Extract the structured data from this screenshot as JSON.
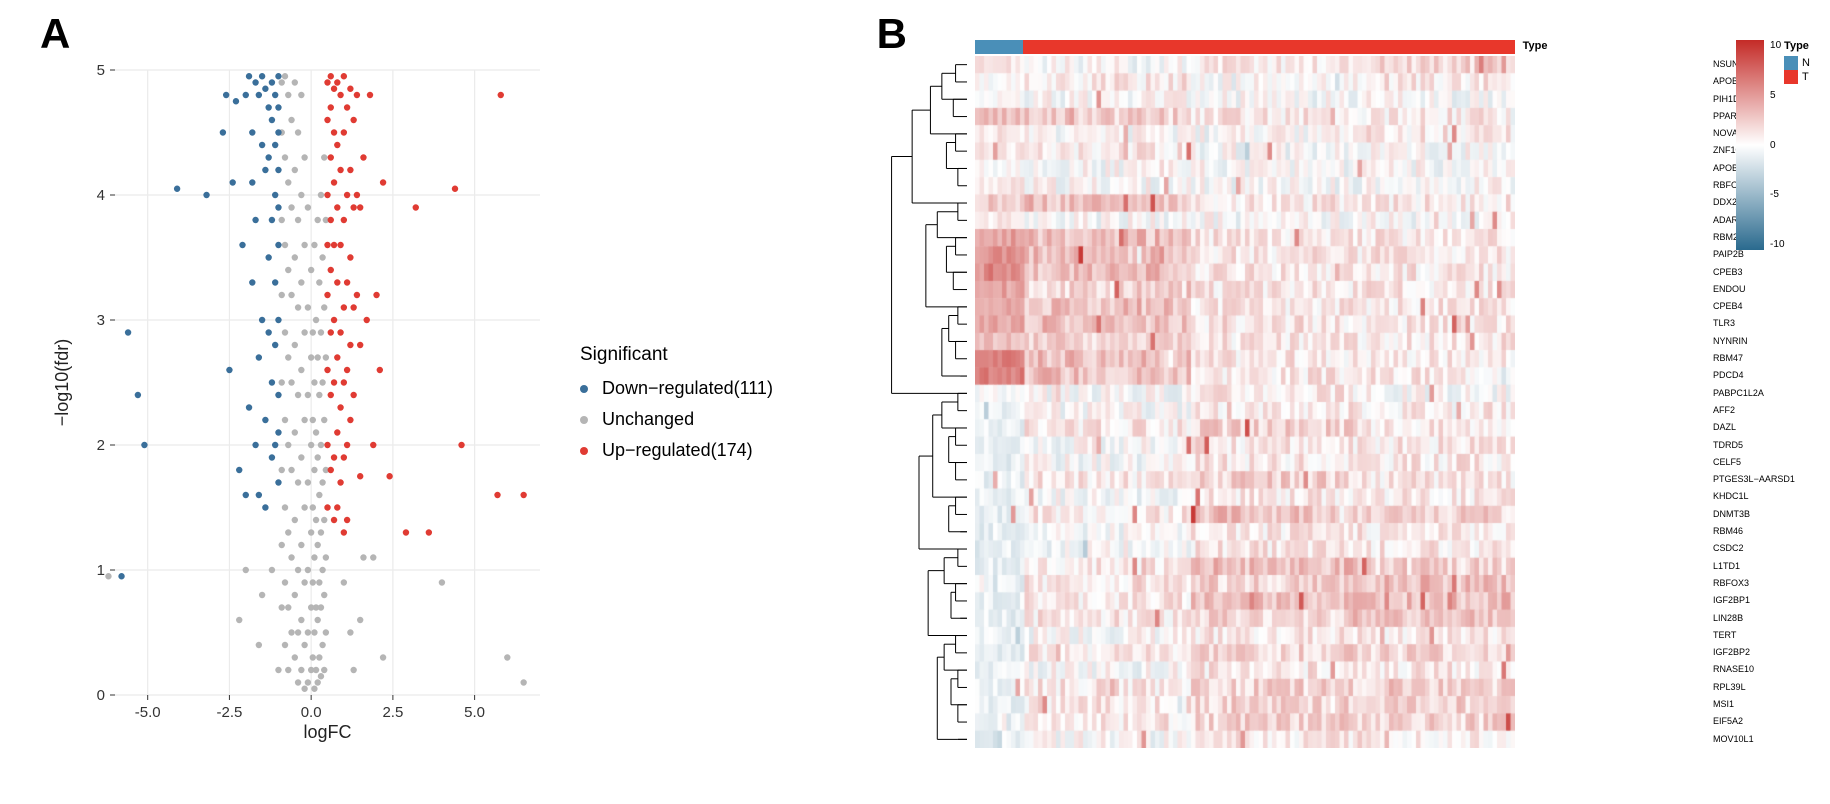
{
  "panelA": {
    "label": "A",
    "type": "scatter",
    "xlabel": "logFC",
    "ylabel": "−log10(fdr)",
    "xlim": [
      -6,
      7
    ],
    "ylim": [
      0,
      5
    ],
    "xticks": [
      -5.0,
      -2.5,
      0.0,
      2.5,
      5.0
    ],
    "yticks": [
      0,
      1,
      2,
      3,
      4,
      5
    ],
    "background_color": "#ffffff",
    "grid_color": "#ebebeb",
    "panel_border": "none",
    "point_radius": 3.2,
    "legend_title": "Significant",
    "categories": {
      "down": {
        "label": "Down−regulated(111)",
        "color": "#3a6f9a"
      },
      "unchanged": {
        "label": "Unchanged",
        "color": "#b5b5b5"
      },
      "up": {
        "label": "Up−regulated(174)",
        "color": "#e03b33"
      }
    },
    "points_down": [
      [
        -5.8,
        0.95
      ],
      [
        -5.6,
        2.9
      ],
      [
        -5.3,
        2.4
      ],
      [
        -5.1,
        2.0
      ],
      [
        -4.1,
        4.05
      ],
      [
        -3.2,
        4.0
      ],
      [
        -2.7,
        4.5
      ],
      [
        -2.6,
        4.8
      ],
      [
        -2.5,
        2.6
      ],
      [
        -2.4,
        4.1
      ],
      [
        -2.3,
        4.75
      ],
      [
        -2.2,
        1.8
      ],
      [
        -2.1,
        3.6
      ],
      [
        -2.0,
        4.8
      ],
      [
        -2.0,
        1.6
      ],
      [
        -1.9,
        4.95
      ],
      [
        -1.9,
        2.3
      ],
      [
        -1.8,
        4.5
      ],
      [
        -1.8,
        3.3
      ],
      [
        -1.8,
        4.1
      ],
      [
        -1.7,
        4.9
      ],
      [
        -1.7,
        2.0
      ],
      [
        -1.7,
        3.8
      ],
      [
        -1.6,
        4.8
      ],
      [
        -1.6,
        2.7
      ],
      [
        -1.6,
        1.6
      ],
      [
        -1.5,
        4.95
      ],
      [
        -1.5,
        4.4
      ],
      [
        -1.5,
        3.0
      ],
      [
        -1.4,
        4.85
      ],
      [
        -1.4,
        4.2
      ],
      [
        -1.4,
        2.2
      ],
      [
        -1.4,
        1.5
      ],
      [
        -1.3,
        4.7
      ],
      [
        -1.3,
        3.5
      ],
      [
        -1.3,
        2.9
      ],
      [
        -1.3,
        4.3
      ],
      [
        -1.2,
        4.9
      ],
      [
        -1.2,
        3.8
      ],
      [
        -1.2,
        2.5
      ],
      [
        -1.2,
        4.6
      ],
      [
        -1.2,
        1.9
      ],
      [
        -1.1,
        4.8
      ],
      [
        -1.1,
        4.0
      ],
      [
        -1.1,
        3.3
      ],
      [
        -1.1,
        2.0
      ],
      [
        -1.1,
        4.4
      ],
      [
        -1.1,
        2.8
      ],
      [
        -1.0,
        4.95
      ],
      [
        -1.0,
        4.7
      ],
      [
        -1.0,
        3.6
      ],
      [
        -1.0,
        3.0
      ],
      [
        -1.0,
        4.2
      ],
      [
        -1.0,
        1.7
      ],
      [
        -1.0,
        2.4
      ],
      [
        -1.0,
        3.9
      ],
      [
        -1.0,
        4.5
      ],
      [
        -1.0,
        2.1
      ]
    ],
    "points_up": [
      [
        0.5,
        4.9
      ],
      [
        0.5,
        4.6
      ],
      [
        0.5,
        4.0
      ],
      [
        0.5,
        3.6
      ],
      [
        0.5,
        3.2
      ],
      [
        0.5,
        2.6
      ],
      [
        0.5,
        2.0
      ],
      [
        0.5,
        1.5
      ],
      [
        0.6,
        4.95
      ],
      [
        0.6,
        4.7
      ],
      [
        0.6,
        4.3
      ],
      [
        0.6,
        3.8
      ],
      [
        0.6,
        3.4
      ],
      [
        0.6,
        2.9
      ],
      [
        0.6,
        2.4
      ],
      [
        0.6,
        1.8
      ],
      [
        0.7,
        4.85
      ],
      [
        0.7,
        4.5
      ],
      [
        0.7,
        4.1
      ],
      [
        0.7,
        3.6
      ],
      [
        0.7,
        3.0
      ],
      [
        0.7,
        2.5
      ],
      [
        0.7,
        1.9
      ],
      [
        0.7,
        1.4
      ],
      [
        0.8,
        4.9
      ],
      [
        0.8,
        4.4
      ],
      [
        0.8,
        3.9
      ],
      [
        0.8,
        3.3
      ],
      [
        0.8,
        2.7
      ],
      [
        0.8,
        2.1
      ],
      [
        0.8,
        1.5
      ],
      [
        0.9,
        4.8
      ],
      [
        0.9,
        4.2
      ],
      [
        0.9,
        3.6
      ],
      [
        0.9,
        2.9
      ],
      [
        0.9,
        2.3
      ],
      [
        0.9,
        1.7
      ],
      [
        1.0,
        4.95
      ],
      [
        1.0,
        4.5
      ],
      [
        1.0,
        3.8
      ],
      [
        1.0,
        3.1
      ],
      [
        1.0,
        2.5
      ],
      [
        1.0,
        1.9
      ],
      [
        1.0,
        1.3
      ],
      [
        1.1,
        4.7
      ],
      [
        1.1,
        4.0
      ],
      [
        1.1,
        3.3
      ],
      [
        1.1,
        2.6
      ],
      [
        1.1,
        2.0
      ],
      [
        1.1,
        1.4
      ],
      [
        1.2,
        4.85
      ],
      [
        1.2,
        4.2
      ],
      [
        1.2,
        3.5
      ],
      [
        1.2,
        2.8
      ],
      [
        1.2,
        2.2
      ],
      [
        1.3,
        4.6
      ],
      [
        1.3,
        3.9
      ],
      [
        1.3,
        3.1
      ],
      [
        1.3,
        2.4
      ],
      [
        1.4,
        4.8
      ],
      [
        1.4,
        4.0
      ],
      [
        1.4,
        3.2
      ],
      [
        1.5,
        3.9
      ],
      [
        1.5,
        2.8
      ],
      [
        1.5,
        1.75
      ],
      [
        1.6,
        4.3
      ],
      [
        1.7,
        3.0
      ],
      [
        1.8,
        4.8
      ],
      [
        1.9,
        2.0
      ],
      [
        2.0,
        3.2
      ],
      [
        2.1,
        2.6
      ],
      [
        2.2,
        4.1
      ],
      [
        2.4,
        1.75
      ],
      [
        2.9,
        1.3
      ],
      [
        3.2,
        3.9
      ],
      [
        3.6,
        1.3
      ],
      [
        4.4,
        4.05
      ],
      [
        4.6,
        2.0
      ],
      [
        5.7,
        1.6
      ],
      [
        5.8,
        4.8
      ],
      [
        6.5,
        1.6
      ]
    ],
    "points_unchanged": [
      [
        -6.2,
        0.95
      ],
      [
        -0.9,
        4.9
      ],
      [
        -0.9,
        4.5
      ],
      [
        -0.9,
        3.8
      ],
      [
        -0.9,
        3.2
      ],
      [
        -0.9,
        2.5
      ],
      [
        -0.9,
        1.8
      ],
      [
        -0.9,
        1.2
      ],
      [
        -0.9,
        0.7
      ],
      [
        -0.8,
        4.95
      ],
      [
        -0.8,
        4.3
      ],
      [
        -0.8,
        3.6
      ],
      [
        -0.8,
        2.9
      ],
      [
        -0.8,
        2.2
      ],
      [
        -0.8,
        1.5
      ],
      [
        -0.8,
        0.9
      ],
      [
        -0.8,
        0.4
      ],
      [
        -0.7,
        4.8
      ],
      [
        -0.7,
        4.1
      ],
      [
        -0.7,
        3.4
      ],
      [
        -0.7,
        2.7
      ],
      [
        -0.7,
        2.0
      ],
      [
        -0.7,
        1.3
      ],
      [
        -0.7,
        0.7
      ],
      [
        -0.7,
        0.2
      ],
      [
        -0.6,
        4.6
      ],
      [
        -0.6,
        3.9
      ],
      [
        -0.6,
        3.2
      ],
      [
        -0.6,
        2.5
      ],
      [
        -0.6,
        1.8
      ],
      [
        -0.6,
        1.1
      ],
      [
        -0.6,
        0.5
      ],
      [
        -0.5,
        4.9
      ],
      [
        -0.5,
        4.2
      ],
      [
        -0.5,
        3.5
      ],
      [
        -0.5,
        2.8
      ],
      [
        -0.5,
        2.1
      ],
      [
        -0.5,
        1.4
      ],
      [
        -0.5,
        0.8
      ],
      [
        -0.5,
        0.3
      ],
      [
        -0.4,
        4.5
      ],
      [
        -0.4,
        3.8
      ],
      [
        -0.4,
        3.1
      ],
      [
        -0.4,
        2.4
      ],
      [
        -0.4,
        1.7
      ],
      [
        -0.4,
        1.0
      ],
      [
        -0.4,
        0.5
      ],
      [
        -0.4,
        0.1
      ],
      [
        -0.3,
        4.8
      ],
      [
        -0.3,
        4.0
      ],
      [
        -0.3,
        3.3
      ],
      [
        -0.3,
        2.6
      ],
      [
        -0.3,
        1.9
      ],
      [
        -0.3,
        1.2
      ],
      [
        -0.3,
        0.6
      ],
      [
        -0.3,
        0.2
      ],
      [
        -0.2,
        4.3
      ],
      [
        -0.2,
        3.6
      ],
      [
        -0.2,
        2.9
      ],
      [
        -0.2,
        2.2
      ],
      [
        -0.2,
        1.5
      ],
      [
        -0.2,
        0.9
      ],
      [
        -0.2,
        0.4
      ],
      [
        -0.2,
        0.05
      ],
      [
        -0.1,
        3.9
      ],
      [
        -0.1,
        3.1
      ],
      [
        -0.1,
        2.4
      ],
      [
        -0.1,
        1.7
      ],
      [
        -0.1,
        1.0
      ],
      [
        -0.1,
        0.5
      ],
      [
        -0.1,
        0.1
      ],
      [
        0.0,
        3.4
      ],
      [
        0.0,
        2.7
      ],
      [
        0.0,
        2.0
      ],
      [
        0.0,
        1.3
      ],
      [
        0.0,
        0.7
      ],
      [
        0.0,
        0.2
      ],
      [
        0.05,
        2.9
      ],
      [
        0.05,
        2.2
      ],
      [
        0.05,
        1.5
      ],
      [
        0.05,
        0.9
      ],
      [
        0.05,
        0.3
      ],
      [
        0.1,
        3.6
      ],
      [
        0.1,
        2.5
      ],
      [
        0.1,
        1.8
      ],
      [
        0.1,
        1.1
      ],
      [
        0.1,
        0.5
      ],
      [
        0.1,
        0.05
      ],
      [
        0.15,
        3.0
      ],
      [
        0.15,
        2.1
      ],
      [
        0.15,
        1.4
      ],
      [
        0.15,
        0.7
      ],
      [
        0.15,
        0.2
      ],
      [
        0.2,
        3.8
      ],
      [
        0.2,
        2.7
      ],
      [
        0.2,
        1.9
      ],
      [
        0.2,
        1.2
      ],
      [
        0.2,
        0.6
      ],
      [
        0.2,
        0.1
      ],
      [
        0.25,
        3.3
      ],
      [
        0.25,
        2.4
      ],
      [
        0.25,
        1.6
      ],
      [
        0.25,
        0.9
      ],
      [
        0.25,
        0.3
      ],
      [
        0.3,
        4.0
      ],
      [
        0.3,
        2.9
      ],
      [
        0.3,
        2.0
      ],
      [
        0.3,
        1.3
      ],
      [
        0.3,
        0.7
      ],
      [
        0.3,
        0.15
      ],
      [
        0.35,
        3.5
      ],
      [
        0.35,
        2.5
      ],
      [
        0.35,
        1.7
      ],
      [
        0.35,
        1.0
      ],
      [
        0.35,
        0.4
      ],
      [
        0.4,
        4.3
      ],
      [
        0.4,
        3.1
      ],
      [
        0.4,
        2.2
      ],
      [
        0.4,
        1.4
      ],
      [
        0.4,
        0.8
      ],
      [
        0.4,
        0.2
      ],
      [
        0.45,
        3.8
      ],
      [
        0.45,
        2.7
      ],
      [
        0.45,
        1.8
      ],
      [
        0.45,
        1.1
      ],
      [
        0.45,
        0.5
      ],
      [
        1.6,
        1.1
      ],
      [
        1.0,
        0.9
      ],
      [
        1.2,
        0.5
      ],
      [
        1.3,
        0.2
      ],
      [
        1.5,
        0.6
      ],
      [
        1.9,
        1.1
      ],
      [
        2.2,
        0.3
      ],
      [
        4.0,
        0.9
      ],
      [
        6.0,
        0.3
      ],
      [
        6.5,
        0.1
      ],
      [
        -1.2,
        1.0
      ],
      [
        -1.5,
        0.8
      ],
      [
        -2.0,
        1.0
      ],
      [
        -2.2,
        0.6
      ],
      [
        -1.6,
        0.4
      ],
      [
        -1.0,
        0.2
      ]
    ]
  },
  "panelB": {
    "label": "B",
    "type": "heatmap",
    "type_annotation": {
      "label": "Type",
      "groups": [
        {
          "name": "N",
          "color": "#4a8fb8",
          "fraction": 0.09
        },
        {
          "name": "T",
          "color": "#e8372b",
          "fraction": 0.91
        }
      ]
    },
    "colorbar": {
      "min": -10,
      "max": 10,
      "ticks": [
        10,
        5,
        0,
        -5,
        -10
      ],
      "gradient_top": "#c42b27",
      "gradient_mid": "#ffffff",
      "gradient_bottom": "#2a6a8e"
    },
    "genes": [
      "NSUN7",
      "APOBEC4",
      "PIH1D2",
      "PPARGC1A",
      "NOVA1",
      "ZNF106",
      "APOBEC2",
      "RBFOX1",
      "DDX25",
      "ADARB2",
      "RBM20",
      "PAIP2B",
      "CPEB3",
      "ENDOU",
      "CPEB4",
      "TLR3",
      "NYNRIN",
      "RBM47",
      "PDCD4",
      "PABPC1L2A",
      "AFF2",
      "DAZL",
      "TDRD5",
      "CELF5",
      "PTGES3L−AARSD1",
      "KHDC1L",
      "DNMT3B",
      "RBM46",
      "CSDC2",
      "L1TD1",
      "RBFOX3",
      "IGF2BP1",
      "LIN28B",
      "TERT",
      "IGF2BP2",
      "RNASE10",
      "RPL39L",
      "MSI1",
      "EIF5A2",
      "MOV10L1"
    ],
    "n_samples": 120,
    "row_dendrogram": {
      "brackets": [
        [
          1,
          2,
          10
        ],
        [
          3,
          4,
          12
        ],
        [
          1,
          3,
          22
        ],
        [
          5,
          6,
          10
        ],
        [
          7,
          8,
          8
        ],
        [
          5,
          7,
          18
        ],
        [
          1,
          5,
          32
        ],
        [
          9,
          10,
          8
        ],
        [
          11,
          12,
          10
        ],
        [
          13,
          14,
          12
        ],
        [
          11,
          13,
          18
        ],
        [
          9,
          11,
          26
        ],
        [
          15,
          16,
          8
        ],
        [
          17,
          18,
          10
        ],
        [
          19,
          19,
          6
        ],
        [
          15,
          17,
          16
        ],
        [
          15,
          19,
          22
        ],
        [
          9,
          15,
          36
        ],
        [
          1,
          9,
          48
        ],
        [
          20,
          21,
          8
        ],
        [
          22,
          23,
          10
        ],
        [
          24,
          25,
          10
        ],
        [
          22,
          24,
          16
        ],
        [
          20,
          22,
          22
        ],
        [
          26,
          27,
          10
        ],
        [
          28,
          28,
          6
        ],
        [
          26,
          28,
          16
        ],
        [
          20,
          26,
          30
        ],
        [
          29,
          30,
          8
        ],
        [
          31,
          32,
          10
        ],
        [
          33,
          33,
          6
        ],
        [
          31,
          33,
          14
        ],
        [
          29,
          31,
          20
        ],
        [
          34,
          35,
          10
        ],
        [
          36,
          37,
          8
        ],
        [
          38,
          39,
          8
        ],
        [
          36,
          38,
          14
        ],
        [
          34,
          36,
          20
        ],
        [
          40,
          40,
          8
        ],
        [
          34,
          40,
          26
        ],
        [
          29,
          34,
          34
        ],
        [
          20,
          29,
          42
        ],
        [
          1,
          20,
          66
        ]
      ]
    },
    "heatmap_seed_rows": [
      [
        0.1,
        0.0,
        0.1,
        0.2
      ],
      [
        0.0,
        0.1,
        0.0,
        0.1
      ],
      [
        0.0,
        0.0,
        0.0,
        0.0
      ],
      [
        0.3,
        0.2,
        0.1,
        0.1
      ],
      [
        0.1,
        0.0,
        0.0,
        0.1
      ],
      [
        0.1,
        0.1,
        0.0,
        0.0
      ],
      [
        0.0,
        0.0,
        0.0,
        0.0
      ],
      [
        0.1,
        0.0,
        0.0,
        0.0
      ],
      [
        0.2,
        0.3,
        0.1,
        0.1
      ],
      [
        0.1,
        0.0,
        0.0,
        0.0
      ],
      [
        0.4,
        0.3,
        0.1,
        0.1
      ],
      [
        0.5,
        0.3,
        0.1,
        0.1
      ],
      [
        0.5,
        0.3,
        0.1,
        0.1
      ],
      [
        0.4,
        0.2,
        0.1,
        0.1
      ],
      [
        0.4,
        0.3,
        0.1,
        0.1
      ],
      [
        0.4,
        0.3,
        0.1,
        0.1
      ],
      [
        0.3,
        0.2,
        0.1,
        0.1
      ],
      [
        0.6,
        0.3,
        0.1,
        0.1
      ],
      [
        0.6,
        0.3,
        0.1,
        0.1
      ],
      [
        0.0,
        0.0,
        0.1,
        0.0
      ],
      [
        -0.1,
        0.0,
        0.1,
        0.1
      ],
      [
        -0.1,
        0.1,
        0.2,
        0.1
      ],
      [
        -0.1,
        0.0,
        0.1,
        0.1
      ],
      [
        -0.1,
        0.0,
        0.1,
        0.1
      ],
      [
        -0.1,
        0.1,
        0.2,
        0.1
      ],
      [
        -0.1,
        0.0,
        0.1,
        0.1
      ],
      [
        -0.1,
        0.1,
        0.3,
        0.2
      ],
      [
        -0.1,
        0.0,
        0.1,
        0.1
      ],
      [
        -0.1,
        0.0,
        0.1,
        0.1
      ],
      [
        -0.1,
        0.1,
        0.3,
        0.2
      ],
      [
        -0.1,
        0.1,
        0.2,
        0.3
      ],
      [
        -0.1,
        0.1,
        0.3,
        0.3
      ],
      [
        -0.1,
        0.1,
        0.2,
        0.3
      ],
      [
        -0.1,
        0.0,
        0.1,
        0.1
      ],
      [
        -0.1,
        0.1,
        0.2,
        0.2
      ],
      [
        -0.1,
        0.0,
        0.1,
        0.1
      ],
      [
        -0.1,
        0.1,
        0.2,
        0.2
      ],
      [
        -0.1,
        0.1,
        0.2,
        0.2
      ],
      [
        -0.1,
        0.1,
        0.2,
        0.2
      ],
      [
        -0.1,
        0.0,
        0.1,
        0.1
      ]
    ]
  }
}
